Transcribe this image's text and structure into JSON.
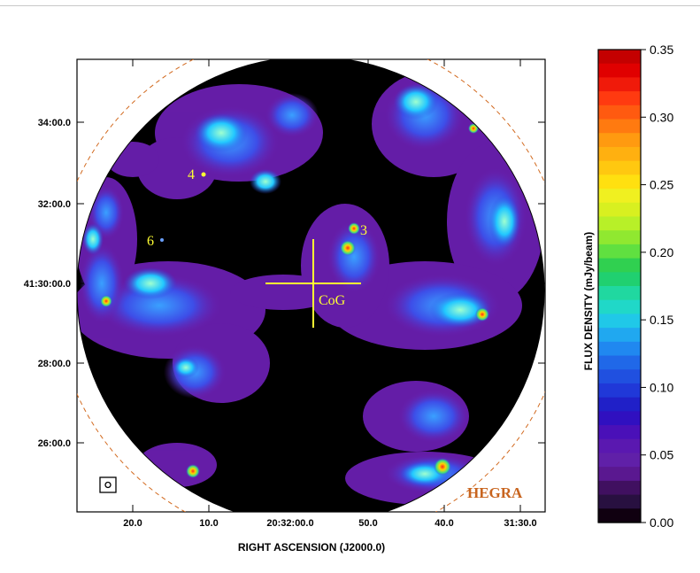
{
  "map": {
    "ra_ticks": [
      "20.0",
      "10.0",
      "20:32:00.0",
      "50.0",
      "40.0",
      "31:30.0"
    ],
    "dec_ticks": [
      "34:00.0",
      "32:00.0",
      "41:30:00.0",
      "28:00.0",
      "26:00.0"
    ],
    "xlabel": "RIGHT ASCENSION (J2000.0)",
    "annotations": {
      "s4": "4",
      "s6": "6",
      "s3": "3",
      "cog": "CoG"
    },
    "telescope_label": "HEGRA",
    "colors": {
      "background": "#000000",
      "low": "#6a1fb0",
      "mid": "#3fa6ff",
      "high": "#ff2a1a",
      "marker": "#ffff33",
      "circle": "#d2691e"
    }
  },
  "colorbar": {
    "label": "FLUX DENSITY  (mJy/beam)",
    "ticks": [
      "0.35",
      "0.30",
      "0.25",
      "0.20",
      "0.15",
      "0.10",
      "0.05",
      "0.00"
    ],
    "range": [
      0.0,
      0.35
    ]
  }
}
